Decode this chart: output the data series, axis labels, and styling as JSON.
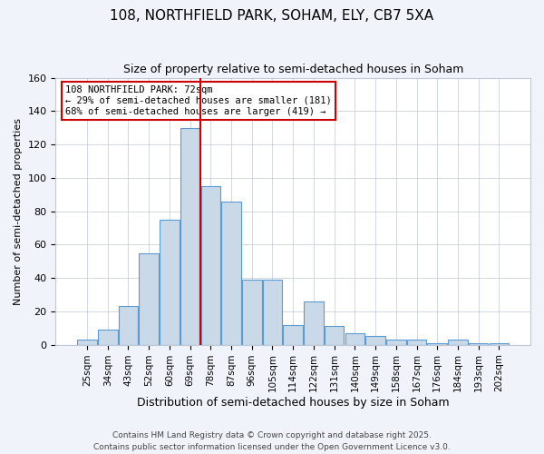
{
  "title1": "108, NORTHFIELD PARK, SOHAM, ELY, CB7 5XA",
  "title2": "Size of property relative to semi-detached houses in Soham",
  "xlabel": "Distribution of semi-detached houses by size in Soham",
  "ylabel": "Number of semi-detached properties",
  "categories": [
    "25sqm",
    "34sqm",
    "43sqm",
    "52sqm",
    "60sqm",
    "69sqm",
    "78sqm",
    "87sqm",
    "96sqm",
    "105sqm",
    "114sqm",
    "122sqm",
    "131sqm",
    "140sqm",
    "149sqm",
    "158sqm",
    "167sqm",
    "176sqm",
    "184sqm",
    "193sqm",
    "202sqm"
  ],
  "values": [
    3,
    9,
    23,
    55,
    75,
    130,
    95,
    86,
    39,
    39,
    12,
    26,
    11,
    7,
    5,
    3,
    3,
    1,
    3,
    1,
    1
  ],
  "bar_color": "#c9d9e8",
  "bar_edge_color": "#5b9bd5",
  "vline_x_index": 5.5,
  "vline_color": "#cc0000",
  "annotation_title": "108 NORTHFIELD PARK: 72sqm",
  "annotation_line1": "← 29% of semi-detached houses are smaller (181)",
  "annotation_line2": "68% of semi-detached houses are larger (419) →",
  "box_edge_color": "#cc0000",
  "ylim": [
    0,
    160
  ],
  "yticks": [
    0,
    20,
    40,
    60,
    80,
    100,
    120,
    140,
    160
  ],
  "footnote1": "Contains HM Land Registry data © Crown copyright and database right 2025.",
  "footnote2": "Contains public sector information licensed under the Open Government Licence v3.0.",
  "bg_color": "#f0f4fa",
  "plot_bg_color": "#ffffff"
}
